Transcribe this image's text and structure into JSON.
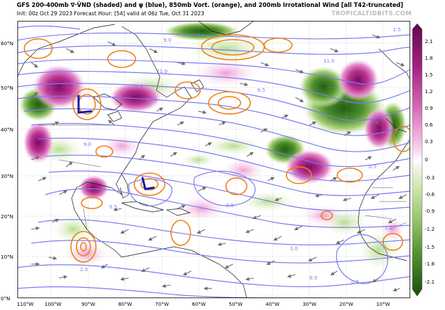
{
  "header": {
    "title": "GFS 200-400mb ∇·V̄ND (shaded) and ψ (blue), 850mb Vort. (orange), and 200mb Irrotational Wind [all T42-truncated]",
    "subtitle": "Init: 00z Oct 29 2023   Forecast Hour: [54]   valid at 06z Tue, Oct 31 2023",
    "credit": "TROPICALTIDBITS.COM"
  },
  "map": {
    "lon_labels": [
      "110°W",
      "100°W",
      "90°W",
      "80°W",
      "70°W",
      "60°W",
      "50°W",
      "40°W",
      "30°W",
      "20°W",
      "10°W"
    ],
    "lat_labels": [
      "0°N",
      "10°N",
      "20°N",
      "30°N",
      "40°N",
      "50°N",
      "60°N"
    ],
    "streamfunction_labels": [
      "11.0",
      "10.5",
      "10.0",
      "9.5",
      "9.0",
      "9.0",
      "0.5",
      "0.5",
      "0.5",
      "0.5",
      "1.5",
      "0.5",
      "2.5",
      "1.0",
      "1.5",
      "11.0"
    ]
  },
  "colorbar": {
    "ticks": [
      "2.1",
      "1.8",
      "1.5",
      "1.2",
      "0.9",
      "0.6",
      "0.3",
      "0",
      "-0.3",
      "-0.6",
      "-0.9",
      "-1.2",
      "-1.5",
      "-1.8",
      "-2.1"
    ]
  },
  "colors": {
    "divergence_pos": "#8a0f6e",
    "divergence_neg": "#2c6e1c",
    "streamfunction": "#7b7bf0",
    "vorticity": "#f07f12",
    "wind_arrow": "#6d6d6d",
    "coastline": "#000000"
  }
}
